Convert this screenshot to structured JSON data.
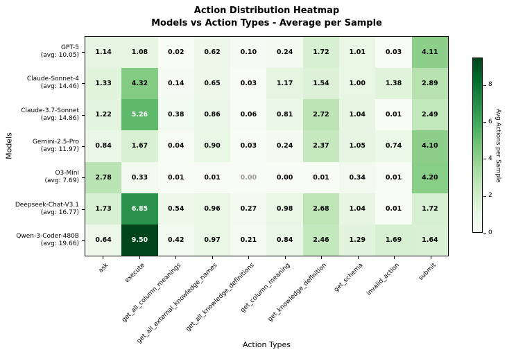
{
  "title": {
    "line1": "Action Distribution Heatmap",
    "line2": "Models vs Action Types - Average per Sample"
  },
  "x_axis": {
    "label": "Action Types"
  },
  "y_axis": {
    "label": "Models"
  },
  "colorbar": {
    "label": "Avg Actions per Sample",
    "ticks": [
      0,
      2,
      4,
      6,
      8
    ],
    "vmin": 0,
    "vmax": 9.5
  },
  "colors": {
    "colormap_name": "Greens",
    "colormap_stops": [
      [
        0.0,
        "#f7fcf5"
      ],
      [
        0.125,
        "#e5f5e0"
      ],
      [
        0.25,
        "#c7e9c0"
      ],
      [
        0.375,
        "#a1d99b"
      ],
      [
        0.5,
        "#74c476"
      ],
      [
        0.625,
        "#41ab5d"
      ],
      [
        0.75,
        "#238b45"
      ],
      [
        0.875,
        "#006d2c"
      ],
      [
        1.0,
        "#00441b"
      ]
    ],
    "annotation_dark": "#000000",
    "annotation_light": "#ffffff",
    "annotation_muted": "#999999",
    "white_text_threshold": 4.75
  },
  "chart_data": {
    "type": "heatmap",
    "title": "Action Distribution Heatmap\nModels vs Action Types - Average per Sample",
    "xlabel": "Action Types",
    "ylabel": "Models",
    "colorbar_label": "Avg Actions per Sample",
    "vmin": 0,
    "vmax": 9.5,
    "x_categories": [
      "ask",
      "execute",
      "get_all_column_meanings",
      "get_all_external_knowledge_names",
      "get_all_knowledge_definitions",
      "get_column_meaning",
      "get_knowledge_definition",
      "get_schema",
      "invalid_action",
      "submit"
    ],
    "rows": [
      {
        "model": "GPT-5",
        "avg": "(avg: 10.05)",
        "values": [
          1.14,
          1.08,
          0.02,
          0.62,
          0.1,
          0.24,
          1.72,
          1.01,
          0.03,
          4.11
        ]
      },
      {
        "model": "Claude-Sonnet-4",
        "avg": "(avg: 14.46)",
        "values": [
          1.33,
          4.32,
          0.14,
          0.65,
          0.03,
          1.17,
          1.54,
          1.0,
          1.38,
          2.89
        ]
      },
      {
        "model": "Claude-3.7-Sonnet",
        "avg": "(avg: 14.86)",
        "values": [
          1.22,
          5.26,
          0.38,
          0.86,
          0.06,
          0.81,
          2.72,
          1.04,
          0.01,
          2.49
        ]
      },
      {
        "model": "Gemini-2.5-Pro",
        "avg": "(avg: 11.97)",
        "values": [
          0.84,
          1.67,
          0.04,
          0.9,
          0.03,
          0.24,
          2.37,
          1.05,
          0.74,
          4.1
        ]
      },
      {
        "model": "O3-Mini",
        "avg": "(avg: 7.69)",
        "values": [
          2.78,
          0.33,
          0.01,
          0.01,
          0.0,
          0.0,
          0.01,
          0.34,
          0.01,
          4.2
        ]
      },
      {
        "model": "Deepseek-Chat-V3.1",
        "avg": "(avg: 16.77)",
        "values": [
          1.73,
          6.85,
          0.54,
          0.96,
          0.27,
          0.98,
          2.68,
          1.04,
          0.01,
          1.72
        ]
      },
      {
        "model": "Qwen-3-Coder-480B",
        "avg": "(avg: 19.66)",
        "values": [
          0.64,
          9.5,
          0.42,
          0.97,
          0.21,
          0.84,
          2.46,
          1.29,
          1.69,
          1.64
        ]
      }
    ],
    "muted_cells": [
      {
        "row": 4,
        "col": 4
      }
    ]
  }
}
